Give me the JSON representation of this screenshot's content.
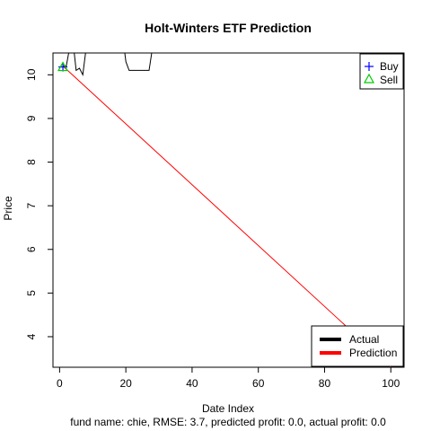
{
  "chart_data": {
    "type": "line",
    "title": "Holt-Winters ETF Prediction",
    "xlabel": "Date Index",
    "ylabel": "Price",
    "subtitle": "fund name: chie, RMSE: 3.7, predicted profit: 0.0, actual profit: 0.0",
    "xlim": [
      -2,
      104
    ],
    "ylim": [
      3.3,
      10.5
    ],
    "xticks": [
      0,
      20,
      40,
      60,
      80,
      100
    ],
    "yticks": [
      4,
      5,
      6,
      7,
      8,
      9,
      10
    ],
    "grid": false,
    "series": [
      {
        "name": "Actual",
        "color": "#000000",
        "x": [
          1,
          2,
          3,
          4,
          5,
          6,
          7,
          8,
          9,
          10,
          11,
          12,
          13,
          14,
          15,
          16,
          17,
          18,
          19,
          20,
          21,
          22,
          23,
          24,
          25,
          26,
          27,
          28,
          29,
          30,
          31,
          32,
          33,
          34,
          35,
          36,
          37,
          38,
          39,
          40,
          41,
          42,
          43,
          44,
          45,
          46,
          47,
          48,
          49,
          50,
          51,
          52,
          53,
          54,
          55,
          56,
          57,
          58,
          59,
          60,
          61,
          62,
          63,
          64,
          65,
          66,
          67,
          68,
          69,
          70,
          71,
          72,
          73,
          74,
          75,
          76,
          77,
          78,
          79,
          80,
          81,
          82,
          83,
          84,
          85,
          86,
          87,
          88,
          89,
          90,
          91,
          92,
          93,
          94,
          95,
          96,
          97,
          98,
          99,
          100
        ],
        "y": [
          10.2,
          10.2,
          10.6,
          10.8,
          10.1,
          10.15,
          10.0,
          10.6,
          10.8,
          10.9,
          10.9,
          10.9,
          10.9,
          10.9,
          10.9,
          10.9,
          10.9,
          10.9,
          10.9,
          10.3,
          10.1,
          10.1,
          10.1,
          10.1,
          10.1,
          10.1,
          10.1,
          10.6,
          10.8,
          10.9,
          10.9,
          10.9,
          10.9,
          10.9,
          10.9,
          10.9,
          10.9,
          10.9,
          10.9,
          10.9,
          10.9,
          10.9,
          10.9,
          10.9,
          10.9,
          10.9,
          10.9,
          10.9,
          10.9,
          10.9,
          10.9,
          10.9,
          10.9,
          10.9,
          10.9,
          10.9,
          10.9,
          10.9,
          10.9,
          10.9,
          10.9,
          10.9,
          10.9,
          10.9,
          10.9,
          10.9,
          10.9,
          10.9,
          10.9,
          10.9,
          10.9,
          10.9,
          10.9,
          10.9,
          10.9,
          10.9,
          10.9,
          10.9,
          10.9,
          10.9,
          10.9,
          10.9,
          10.9,
          10.9,
          10.9,
          10.9,
          10.9,
          10.9,
          10.9,
          10.9,
          10.9,
          10.9,
          10.9,
          10.9,
          10.9,
          10.9,
          10.9,
          10.9,
          10.9,
          10.9
        ]
      },
      {
        "name": "Prediction",
        "color": "#ff0000",
        "x": [
          1,
          100
        ],
        "y": [
          10.2,
          3.3
        ]
      }
    ],
    "markers": [
      {
        "name": "Buy",
        "symbol": "+",
        "color": "#0000ff",
        "x": 1,
        "y": 10.18
      },
      {
        "name": "Sell",
        "symbol": "triangle",
        "color": "#00cc00",
        "x": 1,
        "y": 10.18
      }
    ],
    "legends": {
      "markers": {
        "position": "top-right",
        "items": [
          {
            "label": "Buy",
            "symbol": "+",
            "color": "#0000ff"
          },
          {
            "label": "Sell",
            "symbol": "triangle",
            "color": "#00cc00"
          }
        ]
      },
      "lines": {
        "position": "bottom-right",
        "items": [
          {
            "label": "Actual",
            "color": "#000000"
          },
          {
            "label": "Prediction",
            "color": "#ff0000"
          }
        ]
      }
    }
  }
}
